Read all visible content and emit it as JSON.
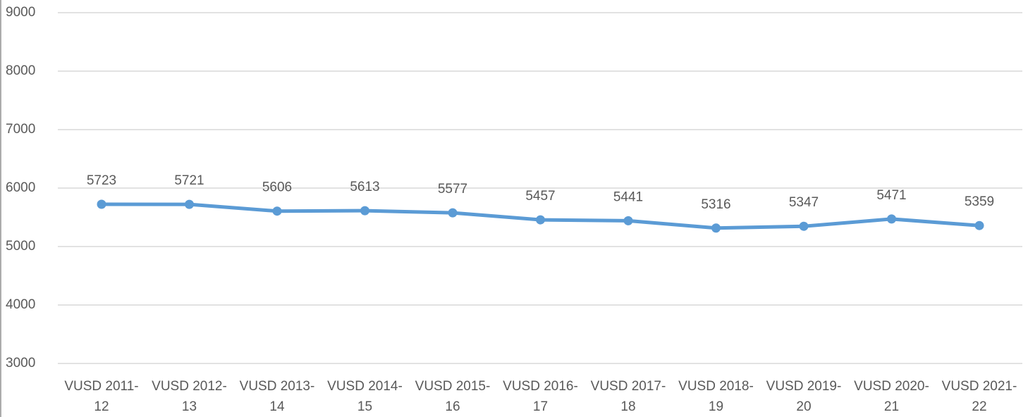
{
  "chart_data": {
    "type": "line",
    "categories": [
      "VUSD 2011-12",
      "VUSD 2012-13",
      "VUSD 2013-14",
      "VUSD 2014-15",
      "VUSD 2015-16",
      "VUSD 2016-17",
      "VUSD 2017-18",
      "VUSD 2018-19",
      "VUSD 2019-20",
      "VUSD 2020-21",
      "VUSD 2021-22"
    ],
    "series": [
      {
        "color": "#5b9bd5",
        "values": [
          5723,
          5721,
          5606,
          5613,
          5577,
          5457,
          5441,
          5316,
          5347,
          5471,
          5359
        ]
      }
    ],
    "ylim": [
      3000,
      9000
    ],
    "yticks": [
      3000,
      4000,
      5000,
      6000,
      7000,
      8000,
      9000
    ],
    "grid": true,
    "data_labels": true
  }
}
